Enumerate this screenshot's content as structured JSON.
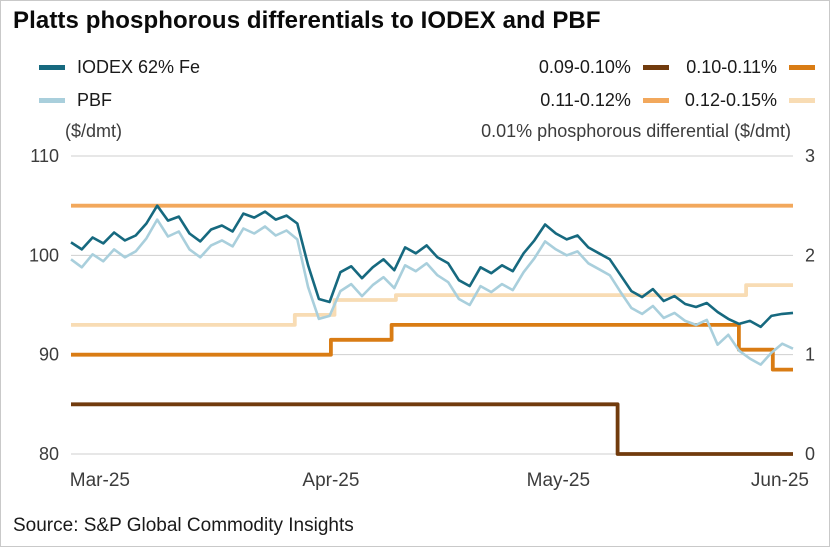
{
  "title": "Platts phosphorous differentials to IODEX and PBF",
  "source": "Source: S&P Global Commodity Insights",
  "chart_data": {
    "type": "line",
    "title": "Platts phosphorous differentials to IODEX and PBF",
    "grid": "horizontal",
    "legend_position": "top",
    "axes": {
      "left": {
        "caption": "($/dmt)",
        "min": 80,
        "max": 110,
        "ticks": [
          110,
          100,
          90,
          80
        ]
      },
      "right": {
        "caption": "0.01% phosphorous differential ($/dmt)",
        "min": 0,
        "max": 3,
        "ticks": [
          3,
          2,
          1,
          0
        ]
      },
      "x": {
        "ticks": [
          {
            "label": "Mar-25",
            "pos": 0.04,
            "anchor": "middle",
            "dx": 0
          },
          {
            "label": "Apr-25",
            "pos": 0.36,
            "anchor": "middle",
            "dx": 0
          },
          {
            "label": "May-25",
            "pos": 0.675,
            "anchor": "middle",
            "dx": 0
          },
          {
            "label": "Jun-25",
            "pos": 1.0,
            "anchor": "end",
            "dx": 16
          }
        ]
      }
    },
    "series": [
      {
        "name": "IODEX 62% Fe",
        "color": "#16697F",
        "axis": "left",
        "style": "line",
        "values": [
          101.3,
          100.6,
          101.8,
          101.2,
          102.3,
          101.5,
          102.0,
          103.2,
          105.0,
          103.5,
          103.9,
          102.2,
          101.4,
          102.6,
          103.0,
          102.4,
          104.2,
          103.8,
          104.4,
          103.6,
          104.0,
          103.2,
          99.0,
          95.6,
          95.3,
          98.3,
          98.9,
          97.7,
          98.8,
          99.6,
          98.5,
          100.8,
          100.2,
          101.0,
          99.8,
          99.2,
          97.5,
          96.9,
          98.8,
          98.2,
          99.0,
          98.4,
          100.2,
          101.5,
          103.1,
          102.2,
          101.6,
          102.0,
          100.8,
          100.2,
          99.6,
          98.0,
          96.4,
          95.8,
          96.6,
          95.4,
          95.9,
          95.1,
          94.8,
          95.2,
          94.3,
          93.6,
          93.1,
          93.4,
          92.8,
          93.9,
          94.1,
          94.2
        ]
      },
      {
        "name": "PBF",
        "color": "#A9CFDC",
        "axis": "left",
        "style": "line",
        "values": [
          99.6,
          98.8,
          100.1,
          99.4,
          100.6,
          99.8,
          100.4,
          101.7,
          103.6,
          101.9,
          102.4,
          100.6,
          99.8,
          101.0,
          101.5,
          100.9,
          102.7,
          102.2,
          102.9,
          102.0,
          102.5,
          101.6,
          96.8,
          93.6,
          93.9,
          96.4,
          97.1,
          95.9,
          97.0,
          97.8,
          96.7,
          99.0,
          98.4,
          99.2,
          98.0,
          97.3,
          95.6,
          95.0,
          96.9,
          96.3,
          97.1,
          96.5,
          98.3,
          99.7,
          101.4,
          100.6,
          100.0,
          100.4,
          99.2,
          98.6,
          98.0,
          96.3,
          94.7,
          94.1,
          94.9,
          93.7,
          94.2,
          93.4,
          93.0,
          93.5,
          91.0,
          92.0,
          90.4,
          89.6,
          89.0,
          90.2,
          91.1,
          90.6
        ]
      },
      {
        "name": "0.09-0.10%",
        "color": "#713B0D",
        "axis": "right",
        "style": "step",
        "points": [
          [
            0,
            0.5
          ],
          [
            0.757,
            0.5
          ],
          [
            0.757,
            0.0
          ],
          [
            1,
            0.0
          ]
        ]
      },
      {
        "name": "0.10-0.11%",
        "color": "#D97C14",
        "axis": "right",
        "style": "step",
        "points": [
          [
            0,
            1.0
          ],
          [
            0.36,
            1.0
          ],
          [
            0.36,
            1.15
          ],
          [
            0.444,
            1.15
          ],
          [
            0.444,
            1.3
          ],
          [
            0.925,
            1.3
          ],
          [
            0.925,
            1.05
          ],
          [
            0.972,
            1.05
          ],
          [
            0.972,
            0.85
          ],
          [
            1,
            0.85
          ]
        ]
      },
      {
        "name": "0.11-0.12%",
        "color": "#F2A85C",
        "axis": "right",
        "style": "step",
        "points": [
          [
            0,
            2.5
          ],
          [
            1,
            2.5
          ]
        ]
      },
      {
        "name": "0.12-0.15%",
        "color": "#F8DCB4",
        "axis": "right",
        "style": "step",
        "points": [
          [
            0,
            1.3
          ],
          [
            0.31,
            1.3
          ],
          [
            0.31,
            1.4
          ],
          [
            0.365,
            1.4
          ],
          [
            0.365,
            1.55
          ],
          [
            0.45,
            1.55
          ],
          [
            0.45,
            1.6
          ],
          [
            0.935,
            1.6
          ],
          [
            0.935,
            1.7
          ],
          [
            1,
            1.7
          ]
        ]
      }
    ]
  }
}
